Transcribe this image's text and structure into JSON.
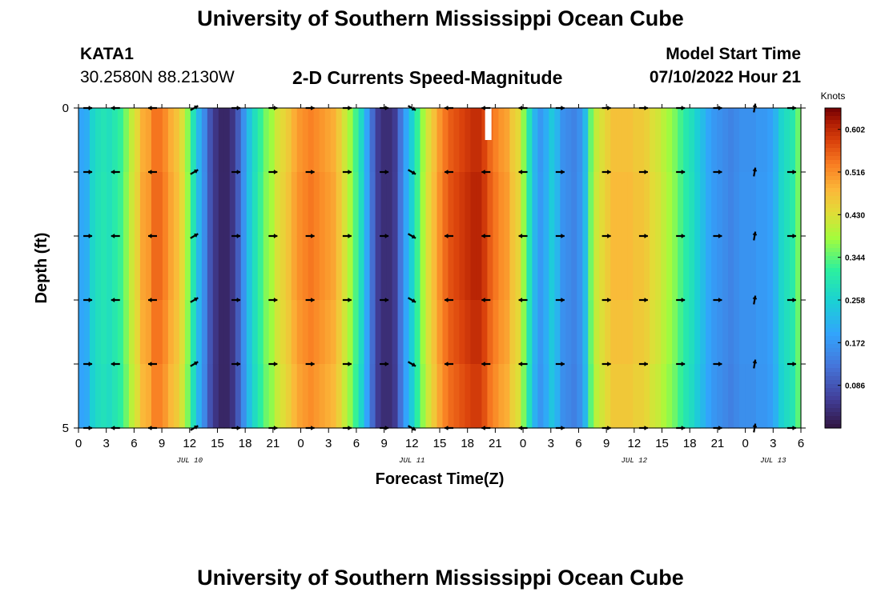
{
  "header": {
    "title": "University of Southern Mississippi Ocean Cube",
    "station": "KATA1",
    "coordinates": "30.2580N  88.2130W",
    "subtitle": "2-D Currents Speed-Magnitude",
    "model_start_label": "Model Start Time",
    "model_start_value": "07/10/2022 Hour 21"
  },
  "footer": {
    "title": "University of Southern Mississippi Ocean Cube"
  },
  "chart_data": {
    "type": "heatmap",
    "title": "2-D Currents Speed-Magnitude",
    "xlabel": "Forecast Time(Z)",
    "ylabel": "Depth (ft)",
    "x_tick_labels": [
      "0",
      "3",
      "6",
      "9",
      "12",
      "15",
      "18",
      "21",
      "0",
      "3",
      "6",
      "9",
      "12",
      "15",
      "18",
      "21",
      "0",
      "3",
      "6",
      "9",
      "12",
      "15",
      "18",
      "21",
      "0",
      "3",
      "6"
    ],
    "x_range_hours": [
      0,
      78
    ],
    "y_tick_labels": [
      "0",
      "5"
    ],
    "ylim": [
      0,
      5
    ],
    "day_labels": [
      {
        "label": "JUL 10",
        "hour": 12
      },
      {
        "label": "JUL 11",
        "hour": 36
      },
      {
        "label": "JUL 12",
        "hour": 60
      },
      {
        "label": "JUL 13",
        "hour": 75
      }
    ],
    "colorbar": {
      "title": "Knots",
      "min": 0.0,
      "max": 0.645,
      "ticks": [
        "0.086",
        "0.172",
        "0.258",
        "0.344",
        "0.430",
        "0.516",
        "0.602"
      ]
    },
    "speed_by_hour": [
      0.2,
      0.21,
      0.27,
      0.29,
      0.3,
      0.29,
      0.31,
      0.33,
      0.37,
      0.42,
      0.45,
      0.5,
      0.51,
      0.55,
      0.55,
      0.53,
      0.5,
      0.48,
      0.44,
      0.38,
      0.3,
      0.22,
      0.16,
      0.09,
      0.05,
      0.03,
      0.03,
      0.05,
      0.1,
      0.17,
      0.24,
      0.29,
      0.33,
      0.37,
      0.39,
      0.43,
      0.45,
      0.47,
      0.5,
      0.52,
      0.53,
      0.54,
      0.53,
      0.52,
      0.51,
      0.5,
      0.47,
      0.43,
      0.39,
      0.34,
      0.28,
      0.2,
      0.12,
      0.06,
      0.04,
      0.04,
      0.06,
      0.13,
      0.2,
      0.26,
      0.33,
      0.39,
      0.44,
      0.48,
      0.52,
      0.55,
      0.57,
      0.58,
      0.59,
      0.6,
      0.61,
      0.61,
      0.59,
      0.56,
      0.54,
      0.52,
      0.51,
      0.47,
      0.45,
      0.38,
      0.3,
      0.22,
      0.18,
      0.21,
      0.25,
      0.22,
      0.17,
      0.16,
      0.15,
      0.17,
      0.23,
      0.36,
      0.42,
      0.44,
      0.46,
      0.48,
      0.48,
      0.48,
      0.48,
      0.47,
      0.47,
      0.46,
      0.44,
      0.43,
      0.41,
      0.39,
      0.37,
      0.34,
      0.31,
      0.29,
      0.26,
      0.23,
      0.2,
      0.18,
      0.17,
      0.16,
      0.15,
      0.16,
      0.17,
      0.17,
      0.17,
      0.18,
      0.18,
      0.19,
      0.22,
      0.27,
      0.29,
      0.31,
      0.36
    ],
    "arrow_rows_depth_ft": [
      0,
      1,
      2,
      3,
      4,
      5
    ],
    "arrow_columns_hour": [
      1,
      4,
      8,
      12.5,
      17,
      21,
      25,
      29,
      33,
      36,
      40,
      44,
      48,
      52,
      57,
      61,
      65,
      69,
      73,
      77
    ],
    "arrow_direction_deg": [
      0,
      180,
      180,
      30,
      0,
      0,
      0,
      0,
      0,
      -30,
      180,
      180,
      180,
      0,
      0,
      0,
      0,
      0,
      80,
      0
    ]
  }
}
